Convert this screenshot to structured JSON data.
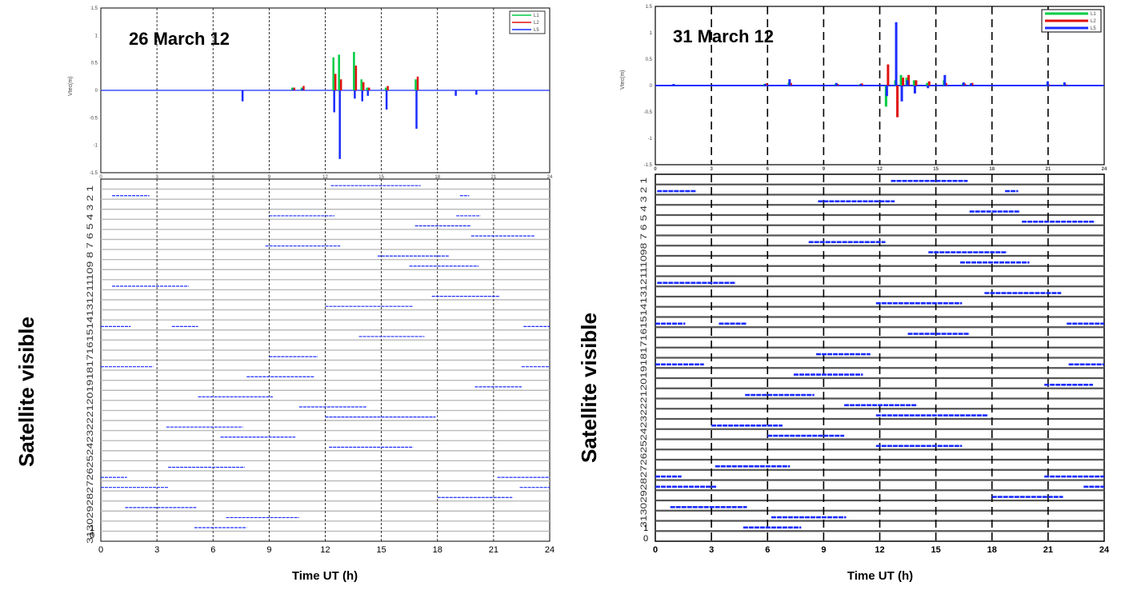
{
  "colors": {
    "L1": "#00cc44",
    "L2": "#e01010",
    "L5": "#1a2cff",
    "grid": "#bbbbbb",
    "vgrid": "#000000",
    "sat": "#1a2cff"
  },
  "chart_data": [
    {
      "type": "line",
      "panel": "left-top",
      "title": "26 March 12",
      "ylabel": "Vtec(m)",
      "xlim": [
        0,
        24
      ],
      "ylim": [
        -1.5,
        1.5
      ],
      "xticks": [
        "0",
        "3",
        "6",
        "9",
        "12",
        "15",
        "18",
        "21",
        "24"
      ],
      "yticks": [
        "1.5",
        "1",
        "0.5",
        "0",
        "-0.5",
        "-1",
        "-1.5"
      ],
      "legend": {
        "position": "top-right",
        "entries": [
          "L1",
          "L2",
          "L5"
        ]
      },
      "spikes": [
        {
          "x": 7.6,
          "L1": 0,
          "L2": 0,
          "L5": -0.2
        },
        {
          "x": 10.3,
          "L1": 0.05,
          "L2": 0.05,
          "L5": 0.02
        },
        {
          "x": 10.8,
          "L1": 0.05,
          "L2": 0.08,
          "L5": 0.03
        },
        {
          "x": 12.5,
          "L1": 0.6,
          "L2": 0.3,
          "L5": -0.4
        },
        {
          "x": 12.8,
          "L1": 0.65,
          "L2": 0.2,
          "L5": -1.25
        },
        {
          "x": 13.6,
          "L1": 0.7,
          "L2": 0.45,
          "L5": -0.15
        },
        {
          "x": 14.0,
          "L1": 0.2,
          "L2": 0.15,
          "L5": -0.2
        },
        {
          "x": 14.3,
          "L1": 0.05,
          "L2": 0.05,
          "L5": -0.1
        },
        {
          "x": 15.3,
          "L1": 0.05,
          "L2": 0.08,
          "L5": -0.35
        },
        {
          "x": 16.9,
          "L1": 0.2,
          "L2": 0.25,
          "L5": -0.7
        },
        {
          "x": 19.0,
          "L1": 0,
          "L2": 0,
          "L5": -0.1
        },
        {
          "x": 20.1,
          "L1": 0,
          "L2": 0,
          "L5": -0.08
        }
      ]
    },
    {
      "type": "line",
      "panel": "right-top",
      "title": "31 March 12",
      "ylabel": "Vtec(m)",
      "xlim": [
        0,
        24
      ],
      "ylim": [
        -1.5,
        1.5
      ],
      "xticks": [
        "0",
        "3",
        "6",
        "9",
        "12",
        "15",
        "18",
        "21",
        "24"
      ],
      "yticks": [
        "1.5",
        "1",
        "0.5",
        "0",
        "-0.5",
        "-1",
        "-1.5"
      ],
      "legend": {
        "position": "top-right",
        "entries": [
          "L1",
          "L2",
          "L5"
        ]
      },
      "spikes": [
        {
          "x": 1.0,
          "L1": 0,
          "L2": 0,
          "L5": 0.03
        },
        {
          "x": 5.9,
          "L1": 0.03,
          "L2": 0.04,
          "L5": 0.03
        },
        {
          "x": 7.2,
          "L1": 0.05,
          "L2": 0.05,
          "L5": 0.12
        },
        {
          "x": 9.7,
          "L1": 0.03,
          "L2": 0.03,
          "L5": 0.05
        },
        {
          "x": 11.0,
          "L1": 0.02,
          "L2": 0.04,
          "L5": 0.03
        },
        {
          "x": 12.4,
          "L1": -0.4,
          "L2": 0.4,
          "L5": -0.2
        },
        {
          "x": 12.9,
          "L1": 0.1,
          "L2": -0.6,
          "L5": 1.2
        },
        {
          "x": 13.2,
          "L1": 0.2,
          "L2": 0.15,
          "L5": -0.3
        },
        {
          "x": 13.5,
          "L1": 0.15,
          "L2": 0.2,
          "L5": 0.1
        },
        {
          "x": 13.9,
          "L1": 0.1,
          "L2": 0.1,
          "L5": -0.15
        },
        {
          "x": 14.6,
          "L1": 0.05,
          "L2": 0.08,
          "L5": -0.05
        },
        {
          "x": 15.5,
          "L1": 0.1,
          "L2": 0.05,
          "L5": 0.2
        },
        {
          "x": 16.5,
          "L1": 0.03,
          "L2": 0.04,
          "L5": 0.06
        },
        {
          "x": 16.9,
          "L1": 0.02,
          "L2": 0.05,
          "L5": 0.04
        },
        {
          "x": 21.0,
          "L1": 0.02,
          "L2": 0.02,
          "L5": 0.08
        },
        {
          "x": 21.9,
          "L1": 0.02,
          "L2": 0.02,
          "L5": 0.06
        }
      ]
    },
    {
      "type": "scatter",
      "panel": "left-bottom",
      "xlabel": "Time UT (h)",
      "ylabel": "Satellite visible",
      "xlim": [
        0,
        24
      ],
      "xticks": [
        "0",
        "3",
        "6",
        "9",
        "12",
        "15",
        "18",
        "21",
        "24"
      ],
      "ytick_string": "313029282726252423222120191817161514131211109 8 7 6 5 4 3 2 1",
      "ytick_low": [
        "1",
        "0"
      ],
      "rows": 32,
      "tracks": [
        {
          "row": 1,
          "segs": [
            [
              12.3,
              17.1
            ]
          ]
        },
        {
          "row": 2,
          "segs": [
            [
              0.6,
              2.6
            ],
            [
              19.2,
              19.7
            ]
          ]
        },
        {
          "row": 4,
          "segs": [
            [
              9.0,
              12.5
            ],
            [
              19.0,
              20.3
            ]
          ]
        },
        {
          "row": 5,
          "segs": [
            [
              16.8,
              19.8
            ]
          ]
        },
        {
          "row": 6,
          "segs": [
            [
              19.8,
              23.2
            ]
          ]
        },
        {
          "row": 7,
          "segs": [
            [
              8.8,
              12.8
            ]
          ]
        },
        {
          "row": 8,
          "segs": [
            [
              14.8,
              18.6
            ]
          ]
        },
        {
          "row": 9,
          "segs": [
            [
              16.5,
              20.2
            ]
          ]
        },
        {
          "row": 11,
          "segs": [
            [
              0.6,
              4.7
            ]
          ]
        },
        {
          "row": 12,
          "segs": [
            [
              17.7,
              21.3
            ]
          ]
        },
        {
          "row": 13,
          "segs": [
            [
              12.0,
              16.7
            ]
          ]
        },
        {
          "row": 15,
          "segs": [
            [
              0,
              1.6
            ],
            [
              3.8,
              5.2
            ],
            [
              22.6,
              24
            ]
          ]
        },
        {
          "row": 16,
          "segs": [
            [
              13.8,
              17.3
            ]
          ]
        },
        {
          "row": 18,
          "segs": [
            [
              9.0,
              11.6
            ]
          ]
        },
        {
          "row": 19,
          "segs": [
            [
              0,
              2.8
            ],
            [
              22.5,
              24
            ]
          ]
        },
        {
          "row": 20,
          "segs": [
            [
              7.8,
              11.4
            ]
          ]
        },
        {
          "row": 21,
          "segs": [
            [
              20.0,
              22.5
            ]
          ]
        },
        {
          "row": 22,
          "segs": [
            [
              5.2,
              9.2
            ]
          ]
        },
        {
          "row": 23,
          "segs": [
            [
              10.6,
              14.2
            ]
          ]
        },
        {
          "row": 24,
          "segs": [
            [
              12.0,
              17.9
            ]
          ]
        },
        {
          "row": 25,
          "segs": [
            [
              3.5,
              7.6
            ]
          ]
        },
        {
          "row": 26,
          "segs": [
            [
              6.4,
              10.4
            ]
          ]
        },
        {
          "row": 27,
          "segs": [
            [
              12.2,
              16.7
            ]
          ]
        },
        {
          "row": 29,
          "segs": [
            [
              3.6,
              7.7
            ]
          ]
        },
        {
          "row": 30,
          "segs": [
            [
              0,
              1.4
            ],
            [
              21.2,
              24
            ]
          ]
        },
        {
          "row": 31,
          "segs": [
            [
              0,
              3.6
            ],
            [
              22.4,
              24
            ]
          ]
        },
        {
          "row": 32,
          "segs": [
            [
              18.0,
              22.0
            ]
          ]
        },
        {
          "row": 33,
          "segs": [
            [
              1.3,
              5.1
            ]
          ]
        },
        {
          "row": 34,
          "segs": [
            [
              6.7,
              10.6
            ]
          ]
        },
        {
          "row": 35,
          "segs": [
            [
              5.0,
              7.8
            ]
          ]
        }
      ]
    },
    {
      "type": "scatter",
      "panel": "right-bottom",
      "xlabel": "Time UT (h)",
      "ylabel": "Satellite visible",
      "xlim": [
        0,
        24
      ],
      "xticks": [
        "0",
        "3",
        "6",
        "9",
        "12",
        "15",
        "18",
        "21",
        "24"
      ],
      "ytick_string": "3130292827262524232221201918171615141312111098 7 6 5 4 3 2 1",
      "ytick_low": [
        "1",
        "0"
      ],
      "rows": 32,
      "tracks": [
        {
          "row": 1,
          "segs": [
            [
              12.6,
              16.7
            ]
          ]
        },
        {
          "row": 2,
          "segs": [
            [
              0.1,
              2.2
            ],
            [
              18.7,
              19.4
            ]
          ]
        },
        {
          "row": 3,
          "segs": [
            [
              8.7,
              12.8
            ]
          ]
        },
        {
          "row": 4,
          "segs": [
            [
              16.8,
              19.5
            ]
          ]
        },
        {
          "row": 5,
          "segs": [
            [
              19.6,
              23.5
            ]
          ]
        },
        {
          "row": 7,
          "segs": [
            [
              8.2,
              12.3
            ]
          ]
        },
        {
          "row": 8,
          "segs": [
            [
              14.6,
              18.8
            ]
          ]
        },
        {
          "row": 9,
          "segs": [
            [
              16.3,
              20.0
            ]
          ]
        },
        {
          "row": 11,
          "segs": [
            [
              0.1,
              4.3
            ]
          ]
        },
        {
          "row": 12,
          "segs": [
            [
              17.6,
              21.7
            ]
          ]
        },
        {
          "row": 13,
          "segs": [
            [
              11.8,
              16.4
            ]
          ]
        },
        {
          "row": 15,
          "segs": [
            [
              0,
              1.6
            ],
            [
              3.4,
              4.9
            ],
            [
              22.0,
              24
            ]
          ]
        },
        {
          "row": 16,
          "segs": [
            [
              13.5,
              16.8
            ]
          ]
        },
        {
          "row": 18,
          "segs": [
            [
              8.6,
              11.5
            ]
          ]
        },
        {
          "row": 19,
          "segs": [
            [
              0,
              2.6
            ],
            [
              22.1,
              24
            ]
          ]
        },
        {
          "row": 20,
          "segs": [
            [
              7.4,
              11.1
            ]
          ]
        },
        {
          "row": 21,
          "segs": [
            [
              20.8,
              23.4
            ]
          ]
        },
        {
          "row": 22,
          "segs": [
            [
              4.8,
              8.5
            ]
          ]
        },
        {
          "row": 23,
          "segs": [
            [
              10.1,
              14.0
            ]
          ]
        },
        {
          "row": 24,
          "segs": [
            [
              11.8,
              17.8
            ]
          ]
        },
        {
          "row": 25,
          "segs": [
            [
              3.0,
              6.8
            ]
          ]
        },
        {
          "row": 26,
          "segs": [
            [
              6.0,
              10.1
            ]
          ]
        },
        {
          "row": 27,
          "segs": [
            [
              11.8,
              16.4
            ]
          ]
        },
        {
          "row": 29,
          "segs": [
            [
              3.2,
              7.2
            ]
          ]
        },
        {
          "row": 30,
          "segs": [
            [
              0,
              1.4
            ],
            [
              20.8,
              24
            ]
          ]
        },
        {
          "row": 31,
          "segs": [
            [
              0,
              3.3
            ],
            [
              22.9,
              24
            ]
          ]
        },
        {
          "row": 32,
          "segs": [
            [
              18.0,
              21.8
            ]
          ]
        },
        {
          "row": 33,
          "segs": [
            [
              0.8,
              4.9
            ]
          ]
        },
        {
          "row": 34,
          "segs": [
            [
              6.2,
              10.2
            ]
          ]
        },
        {
          "row": 35,
          "segs": [
            [
              4.7,
              7.8
            ]
          ]
        }
      ]
    }
  ]
}
